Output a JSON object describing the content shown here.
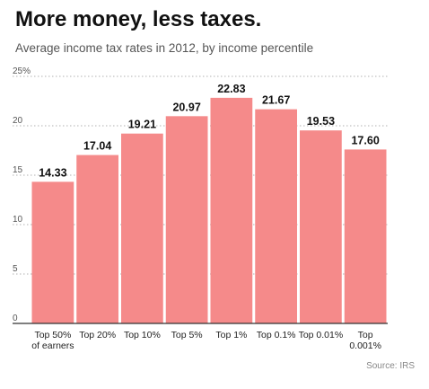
{
  "title": "More money, less taxes.",
  "subtitle": "Average income tax rates in 2012, by income percentile",
  "source": "Source: IRS",
  "colors": {
    "bar": "#f58a8a",
    "bar_label": "#111111",
    "grid": "#999999",
    "axis": "#333333",
    "tick": "#555555"
  },
  "chart_data": {
    "type": "bar",
    "title": "More money, less taxes.",
    "subtitle": "Average income tax rates in 2012, by income percentile",
    "categories": [
      [
        "Top 50%",
        "of earners"
      ],
      [
        "Top 20%"
      ],
      [
        "Top 10%"
      ],
      [
        "Top 5%"
      ],
      [
        "Top 1%"
      ],
      [
        "Top 0.1%"
      ],
      [
        "Top 0.01%"
      ],
      [
        "Top",
        "0.001%"
      ]
    ],
    "values": [
      14.33,
      17.04,
      19.21,
      20.97,
      22.83,
      21.67,
      19.53,
      17.6
    ],
    "value_labels": [
      "14.33",
      "17.04",
      "19.21",
      "20.97",
      "22.83",
      "21.67",
      "19.53",
      "17.60"
    ],
    "yticks": [
      0,
      5,
      10,
      15,
      20,
      25
    ],
    "ytick_labels": [
      "0",
      "5",
      "10",
      "15",
      "20",
      "25%"
    ],
    "ylim": [
      0,
      25
    ],
    "xlabel": "",
    "ylabel": "",
    "grid": true
  }
}
